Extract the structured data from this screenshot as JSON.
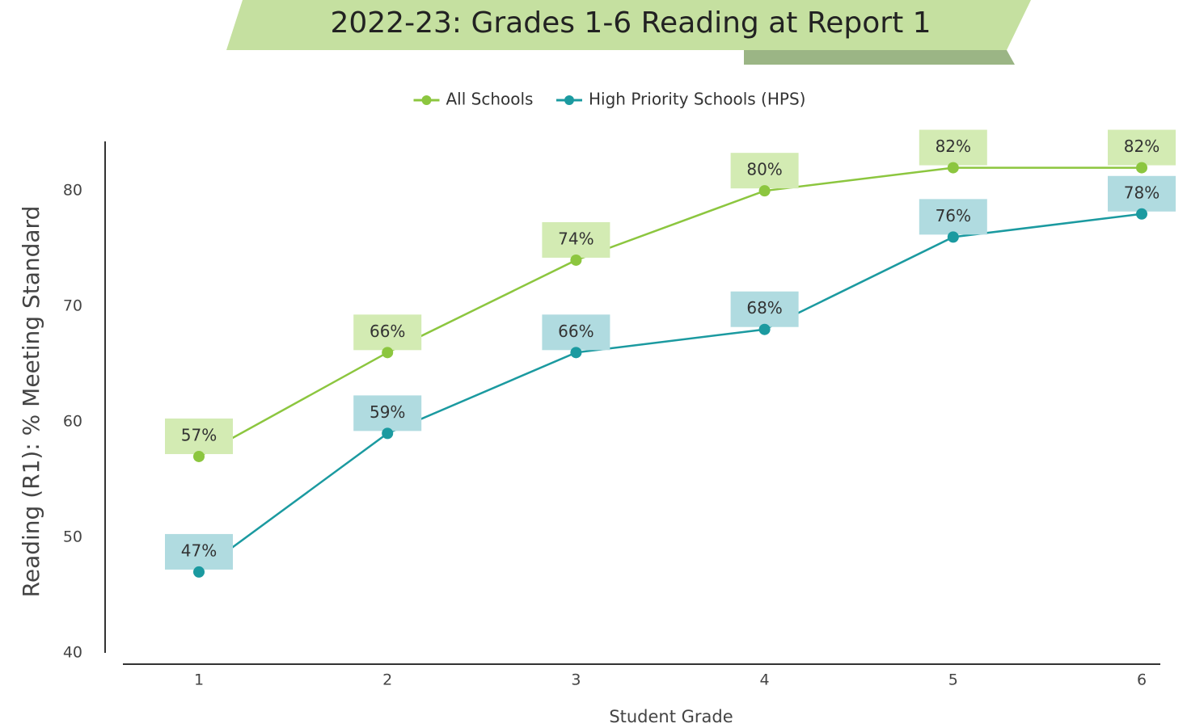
{
  "chart_data": {
    "type": "line",
    "title": "2022-23: Grades 1-6 Reading at Report 1",
    "x_label": "Student Grade",
    "y_label": "Reading (R1): % Meeting Standard",
    "categories": [
      "1",
      "2",
      "3",
      "4",
      "5",
      "6"
    ],
    "ylim": [
      40,
      84
    ],
    "yticks": [
      40,
      50,
      60,
      70,
      80
    ],
    "grid": false,
    "legend": "top",
    "series": [
      {
        "name": "All Schools",
        "color": "#8cc63f",
        "label_color": "#d3ebb3",
        "values": [
          57,
          66,
          74,
          80,
          82,
          82
        ],
        "value_labels": [
          "57%",
          "66%",
          "74%",
          "80%",
          "82%",
          "82%"
        ]
      },
      {
        "name": "High Priority Schools (HPS)",
        "color": "#1b9aa0",
        "label_color": "#b0dbe0",
        "values": [
          47,
          59,
          66,
          68,
          76,
          78
        ],
        "value_labels": [
          "47%",
          "59%",
          "66%",
          "68%",
          "76%",
          "78%"
        ]
      }
    ]
  }
}
